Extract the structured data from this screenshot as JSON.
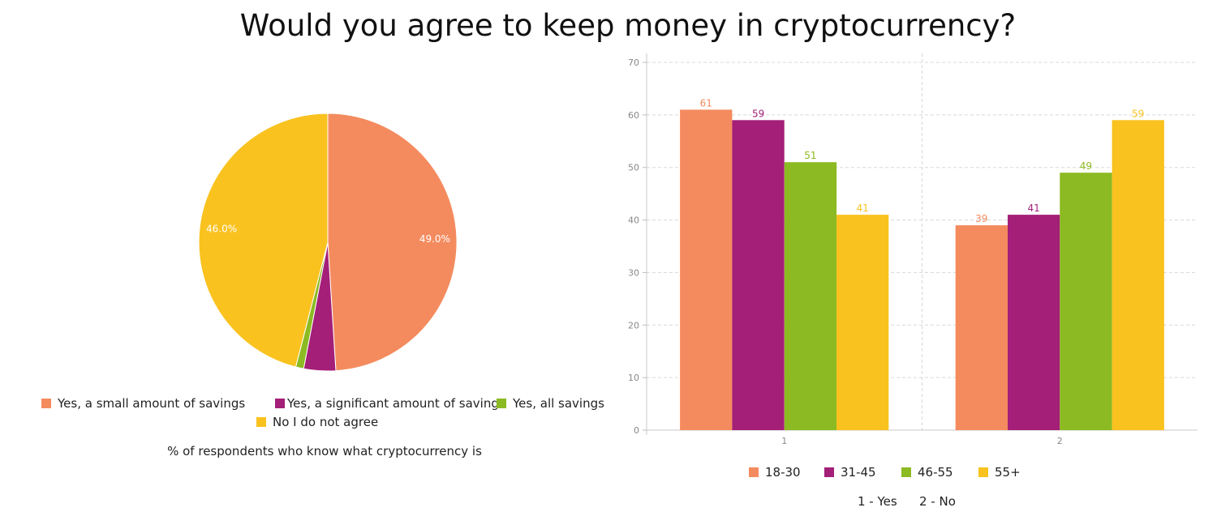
{
  "title": "Would you agree to keep money in cryptocurrency?",
  "colors": {
    "orange": "#f48b5e",
    "purple": "#a41f78",
    "green": "#8cba22",
    "yellow": "#f9c21f"
  },
  "chart_data": [
    {
      "type": "pie",
      "subtitle": "% of respondents who know what cryptocurrency is",
      "categories": [
        "Yes, a small amount of savings",
        "Yes, a significant amount of savings",
        "Yes, all savings",
        "No I do not agree"
      ],
      "values": [
        49.0,
        4.0,
        1.0,
        46.0
      ],
      "value_labels": [
        "49.0%",
        "",
        "",
        "46.0%"
      ],
      "colors": [
        "#f48b5e",
        "#a41f78",
        "#8cba22",
        "#f9c21f"
      ],
      "legend_position": "bottom"
    },
    {
      "type": "bar",
      "categories": [
        "1",
        "2"
      ],
      "series": [
        {
          "name": "18-30",
          "values": [
            61,
            39
          ],
          "color": "#f48b5e"
        },
        {
          "name": "31-45",
          "values": [
            59,
            41
          ],
          "color": "#a41f78"
        },
        {
          "name": "46-55",
          "values": [
            51,
            49
          ],
          "color": "#8cba22"
        },
        {
          "name": "55+",
          "values": [
            41,
            59
          ],
          "color": "#f9c21f"
        }
      ],
      "ylim": [
        0,
        70
      ],
      "yticks": [
        0,
        10,
        20,
        30,
        40,
        50,
        60,
        70
      ],
      "grid": true,
      "legend_position": "bottom",
      "notes": [
        "1 - Yes",
        "2 - No"
      ]
    }
  ]
}
